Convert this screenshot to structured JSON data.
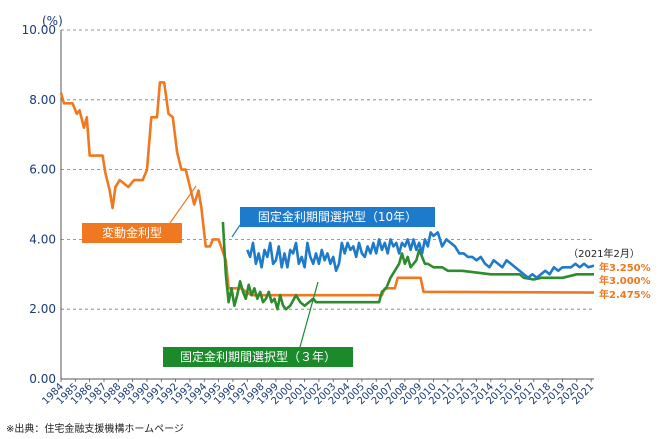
{
  "chart_data": {
    "type": "line",
    "unit_label": "(%)",
    "ylim": [
      0,
      10
    ],
    "y_ticks": [
      "0.00",
      "2.00",
      "4.00",
      "6.00",
      "8.00",
      "10.00"
    ],
    "x_tick_labels": [
      "1984",
      "1985",
      "1986",
      "1987",
      "1988",
      "1989",
      "1990",
      "1991",
      "1992",
      "1993",
      "1994",
      "1995",
      "1996",
      "1997",
      "1998",
      "1999",
      "2000",
      "2001",
      "2002",
      "2003",
      "2004",
      "2005",
      "2006",
      "2007",
      "2008",
      "2009",
      "2010",
      "2011",
      "2012",
      "2013",
      "2014",
      "2015",
      "2016",
      "2017",
      "2018",
      "2019",
      "2020",
      "2021"
    ],
    "xlim": [
      1984,
      2021.2
    ],
    "grid": "horizontal-dashed",
    "source_note": "※出典：住宅金融支援機構ホームページ",
    "date_note": "（2021年2月）",
    "series": [
      {
        "name": "変動金利型",
        "color": "#f07820",
        "end_label": "年2.475%",
        "points": [
          [
            1984,
            8.2
          ],
          [
            1984.2,
            7.9
          ],
          [
            1984.8,
            7.9
          ],
          [
            1985.1,
            7.6
          ],
          [
            1985.3,
            7.7
          ],
          [
            1985.6,
            7.2
          ],
          [
            1985.8,
            7.5
          ],
          [
            1986,
            6.4
          ],
          [
            1986.9,
            6.4
          ],
          [
            1987.1,
            5.9
          ],
          [
            1987.4,
            5.4
          ],
          [
            1987.6,
            4.9
          ],
          [
            1987.8,
            5.5
          ],
          [
            1988.1,
            5.7
          ],
          [
            1988.7,
            5.5
          ],
          [
            1989.1,
            5.7
          ],
          [
            1989.7,
            5.7
          ],
          [
            1990,
            6.0
          ],
          [
            1990.3,
            7.5
          ],
          [
            1990.7,
            7.5
          ],
          [
            1990.9,
            8.5
          ],
          [
            1991.2,
            8.5
          ],
          [
            1991.5,
            7.6
          ],
          [
            1991.8,
            7.5
          ],
          [
            1992.1,
            6.5
          ],
          [
            1992.4,
            6.0
          ],
          [
            1992.7,
            6.0
          ],
          [
            1993,
            5.5
          ],
          [
            1993.3,
            5.0
          ],
          [
            1993.6,
            5.4
          ],
          [
            1993.8,
            4.9
          ],
          [
            1994.1,
            3.8
          ],
          [
            1994.4,
            3.8
          ],
          [
            1994.6,
            4.0
          ],
          [
            1995,
            4.0
          ],
          [
            1995.5,
            3.4
          ],
          [
            1995.7,
            2.6
          ],
          [
            1996.6,
            2.6
          ],
          [
            1996.9,
            2.5
          ],
          [
            1997.3,
            2.4
          ],
          [
            2006.4,
            2.4
          ],
          [
            2006.6,
            2.6
          ],
          [
            2007.3,
            2.6
          ],
          [
            2007.5,
            2.9
          ],
          [
            2009.1,
            2.9
          ],
          [
            2009.3,
            2.5
          ],
          [
            2021.2,
            2.475
          ]
        ]
      },
      {
        "name": "固定金利期間選択型（10年）",
        "color": "#1e7acb",
        "end_label": "年3.250%",
        "points": [
          [
            1997,
            3.7
          ],
          [
            1997.2,
            3.5
          ],
          [
            1997.4,
            3.9
          ],
          [
            1997.6,
            3.3
          ],
          [
            1997.8,
            3.6
          ],
          [
            1998,
            3.2
          ],
          [
            1998.2,
            3.7
          ],
          [
            1998.4,
            3.5
          ],
          [
            1998.6,
            3.9
          ],
          [
            1998.8,
            3.3
          ],
          [
            1999,
            3.4
          ],
          [
            1999.2,
            3.8
          ],
          [
            1999.4,
            3.2
          ],
          [
            1999.6,
            3.6
          ],
          [
            1999.8,
            3.2
          ],
          [
            2000,
            3.7
          ],
          [
            2000.2,
            3.6
          ],
          [
            2000.4,
            3.9
          ],
          [
            2000.6,
            3.3
          ],
          [
            2000.8,
            3.5
          ],
          [
            2001,
            3.2
          ],
          [
            2001.2,
            3.9
          ],
          [
            2001.4,
            3.5
          ],
          [
            2001.6,
            3.3
          ],
          [
            2001.8,
            3.6
          ],
          [
            2002,
            3.3
          ],
          [
            2002.2,
            3.7
          ],
          [
            2002.4,
            3.4
          ],
          [
            2002.6,
            3.6
          ],
          [
            2002.8,
            3.3
          ],
          [
            2003,
            3.5
          ],
          [
            2003.2,
            3.1
          ],
          [
            2003.4,
            3.3
          ],
          [
            2003.6,
            3.9
          ],
          [
            2003.8,
            3.6
          ],
          [
            2004,
            3.9
          ],
          [
            2004.2,
            3.7
          ],
          [
            2004.4,
            3.8
          ],
          [
            2004.6,
            3.5
          ],
          [
            2004.8,
            3.9
          ],
          [
            2005,
            3.6
          ],
          [
            2005.2,
            3.5
          ],
          [
            2005.4,
            3.8
          ],
          [
            2005.6,
            3.6
          ],
          [
            2005.8,
            3.9
          ],
          [
            2006,
            3.6
          ],
          [
            2006.2,
            4.0
          ],
          [
            2006.4,
            3.7
          ],
          [
            2006.6,
            3.9
          ],
          [
            2006.8,
            3.6
          ],
          [
            2007,
            4.0
          ],
          [
            2007.2,
            3.8
          ],
          [
            2007.4,
            3.9
          ],
          [
            2007.6,
            3.6
          ],
          [
            2007.8,
            3.9
          ],
          [
            2008,
            3.8
          ],
          [
            2008.2,
            4.0
          ],
          [
            2008.4,
            3.7
          ],
          [
            2008.6,
            4.0
          ],
          [
            2008.8,
            3.7
          ],
          [
            2009,
            3.9
          ],
          [
            2009.2,
            3.6
          ],
          [
            2009.4,
            4.0
          ],
          [
            2009.6,
            3.8
          ],
          [
            2009.8,
            4.2
          ],
          [
            2010,
            4.1
          ],
          [
            2010.3,
            4.2
          ],
          [
            2010.6,
            3.8
          ],
          [
            2010.9,
            4.0
          ],
          [
            2011.2,
            3.9
          ],
          [
            2011.5,
            3.8
          ],
          [
            2011.8,
            3.6
          ],
          [
            2012.1,
            3.6
          ],
          [
            2012.4,
            3.5
          ],
          [
            2012.7,
            3.5
          ],
          [
            2013,
            3.4
          ],
          [
            2013.3,
            3.5
          ],
          [
            2013.6,
            3.3
          ],
          [
            2013.9,
            3.2
          ],
          [
            2014.2,
            3.4
          ],
          [
            2014.5,
            3.3
          ],
          [
            2014.8,
            3.2
          ],
          [
            2015.1,
            3.4
          ],
          [
            2015.4,
            3.3
          ],
          [
            2015.7,
            3.2
          ],
          [
            2016,
            3.1
          ],
          [
            2016.3,
            3.0
          ],
          [
            2016.6,
            2.9
          ],
          [
            2016.9,
            3.0
          ],
          [
            2017.2,
            2.9
          ],
          [
            2017.5,
            3.0
          ],
          [
            2017.8,
            3.1
          ],
          [
            2018.1,
            3.0
          ],
          [
            2018.4,
            3.2
          ],
          [
            2018.7,
            3.1
          ],
          [
            2019,
            3.2
          ],
          [
            2019.3,
            3.2
          ],
          [
            2019.6,
            3.2
          ],
          [
            2019.9,
            3.3
          ],
          [
            2020.2,
            3.2
          ],
          [
            2020.5,
            3.3
          ],
          [
            2020.8,
            3.2
          ],
          [
            2021.2,
            3.25
          ]
        ]
      },
      {
        "name": "固定金利期間選択型（３年）",
        "color": "#2e8b2e",
        "end_label": "年3.000%",
        "points": [
          [
            1995.3,
            4.5
          ],
          [
            1995.5,
            3.0
          ],
          [
            1995.7,
            2.2
          ],
          [
            1995.9,
            2.6
          ],
          [
            1996.1,
            2.1
          ],
          [
            1996.3,
            2.4
          ],
          [
            1996.5,
            2.8
          ],
          [
            1996.7,
            2.5
          ],
          [
            1996.9,
            2.3
          ],
          [
            1997.1,
            2.7
          ],
          [
            1997.3,
            2.4
          ],
          [
            1997.5,
            2.6
          ],
          [
            1997.7,
            2.3
          ],
          [
            1997.9,
            2.5
          ],
          [
            1998.1,
            2.2
          ],
          [
            1998.3,
            2.3
          ],
          [
            1998.5,
            2.5
          ],
          [
            1998.7,
            2.2
          ],
          [
            1998.9,
            2.3
          ],
          [
            1999.1,
            2.0
          ],
          [
            1999.3,
            2.4
          ],
          [
            1999.5,
            2.1
          ],
          [
            1999.7,
            2.0
          ],
          [
            2000,
            2.1
          ],
          [
            2000.4,
            2.4
          ],
          [
            2000.7,
            2.2
          ],
          [
            2001,
            2.1
          ],
          [
            2001.3,
            2.2
          ],
          [
            2001.6,
            2.3
          ],
          [
            2001.8,
            2.2
          ],
          [
            2002,
            2.2
          ],
          [
            2006.2,
            2.2
          ],
          [
            2006.4,
            2.5
          ],
          [
            2006.7,
            2.6
          ],
          [
            2007,
            2.9
          ],
          [
            2007.3,
            3.1
          ],
          [
            2007.6,
            3.3
          ],
          [
            2007.8,
            3.6
          ],
          [
            2008,
            3.3
          ],
          [
            2008.2,
            3.5
          ],
          [
            2008.4,
            3.2
          ],
          [
            2008.6,
            3.3
          ],
          [
            2008.8,
            3.4
          ],
          [
            2009,
            3.7
          ],
          [
            2009.2,
            3.5
          ],
          [
            2009.4,
            3.3
          ],
          [
            2009.6,
            3.3
          ],
          [
            2010,
            3.2
          ],
          [
            2010.6,
            3.2
          ],
          [
            2011,
            3.1
          ],
          [
            2012,
            3.1
          ],
          [
            2014,
            3.0
          ],
          [
            2016,
            3.0
          ],
          [
            2016.3,
            2.9
          ],
          [
            2017,
            2.85
          ],
          [
            2017.5,
            2.9
          ],
          [
            2019,
            2.9
          ],
          [
            2020,
            3.0
          ],
          [
            2021.2,
            3.0
          ]
        ]
      }
    ],
    "labels": [
      {
        "series": 0,
        "text": "変動金利型",
        "color": "#f07820"
      },
      {
        "series": 1,
        "text": "固定金利期間選択型（10年）",
        "color": "#1e7acb"
      },
      {
        "series": 2,
        "text": "固定金利期間選択型（３年）",
        "color": "#1a8a2a"
      }
    ]
  }
}
